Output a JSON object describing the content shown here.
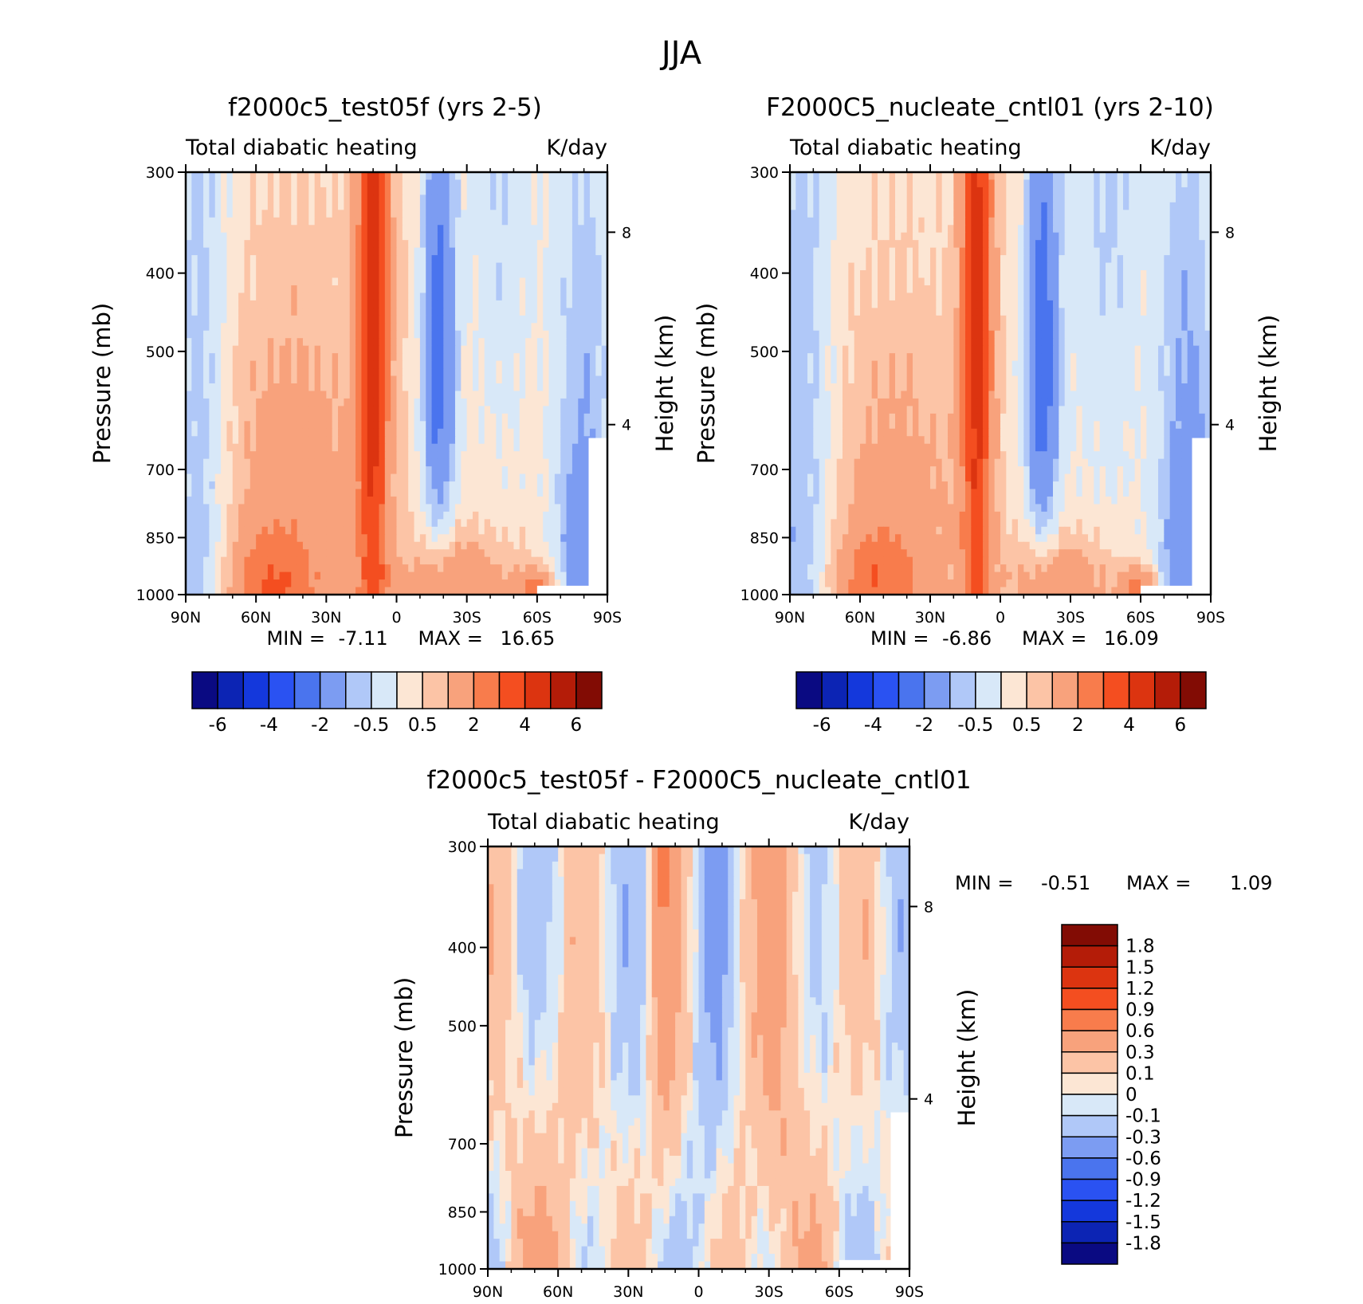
{
  "figure": {
    "title": "JJA"
  },
  "pressure_ticks": [
    "300",
    "400",
    "500",
    "700",
    "850",
    "1000"
  ],
  "height_ticks": [
    "8",
    "4"
  ],
  "lat_ticks": [
    "90N",
    "60N",
    "30N",
    "0",
    "30S",
    "60S",
    "90S"
  ],
  "colors": {
    "main_colorbar": [
      "#0a0a82",
      "#0c24b4",
      "#1438dc",
      "#2a52f2",
      "#4a74ee",
      "#7c9cf2",
      "#b0c8f8",
      "#d8e8f8",
      "#fce6d4",
      "#fcc4a6",
      "#f8a27c",
      "#f87c4c",
      "#f44e20",
      "#dc3410",
      "#b41c08",
      "#820c04"
    ],
    "diff_colorbar": [
      "#0a0a82",
      "#0c24b4",
      "#1438dc",
      "#2a52f2",
      "#4a74ee",
      "#7c9cf2",
      "#b0c8f8",
      "#d8e8f8",
      "#fce6d4",
      "#fcc4a6",
      "#f8a27c",
      "#f87c4c",
      "#f44e20",
      "#dc3410",
      "#b41c08",
      "#820c04"
    ]
  },
  "chart_data": [
    {
      "type": "heatmap",
      "title": "f2000c5_test05f (yrs 2-5)",
      "left_subtitle": "Total diabatic heating",
      "right_subtitle": "K/day",
      "ylabel": "Pressure (mb)",
      "ylabel_right": "Height (km)",
      "x_range": [
        -90,
        90
      ],
      "y_range": [
        1000,
        300
      ],
      "min_label": "MIN =",
      "min_value": "-7.11",
      "max_label": "MAX =",
      "max_value": "16.65",
      "colorbar_levels": [
        "-6",
        "-4",
        "-2",
        "-0.5",
        "0.5",
        "2",
        "4",
        "6"
      ]
    },
    {
      "type": "heatmap",
      "title": "F2000C5_nucleate_cntl01 (yrs 2-10)",
      "left_subtitle": "Total diabatic heating",
      "right_subtitle": "K/day",
      "ylabel": "Pressure (mb)",
      "ylabel_right": "Height (km)",
      "x_range": [
        -90,
        90
      ],
      "y_range": [
        1000,
        300
      ],
      "min_label": "MIN =",
      "min_value": "-6.86",
      "max_label": "MAX =",
      "max_value": "16.09",
      "colorbar_levels": [
        "-6",
        "-4",
        "-2",
        "-0.5",
        "0.5",
        "2",
        "4",
        "6"
      ]
    },
    {
      "type": "heatmap",
      "title": "f2000c5_test05f - F2000C5_nucleate_cntl01",
      "left_subtitle": "Total diabatic heating",
      "right_subtitle": "K/day",
      "ylabel": "Pressure (mb)",
      "ylabel_right": "Height (km)",
      "x_range": [
        -90,
        90
      ],
      "y_range": [
        1000,
        300
      ],
      "min_label": "MIN =",
      "min_value": "-0.51",
      "max_label": "MAX =",
      "max_value": "1.09",
      "colorbar_levels": [
        "1.8",
        "1.5",
        "1.2",
        "0.9",
        "0.6",
        "0.3",
        "0.1",
        "0",
        "-0.1",
        "-0.3",
        "-0.6",
        "-0.9",
        "-1.2",
        "-1.5",
        "-1.8"
      ]
    }
  ]
}
